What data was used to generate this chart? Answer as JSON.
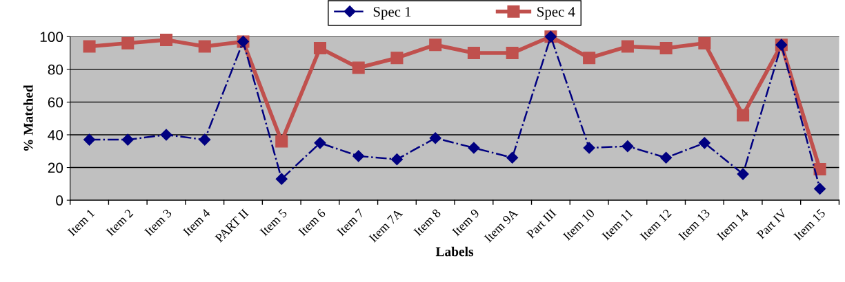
{
  "chart_data": {
    "type": "line",
    "xlabel": "Labels",
    "ylabel": "% Matched",
    "categories": [
      "Item 1",
      "Item 2",
      "Item 3",
      "Item 4",
      "PART II",
      "Item 5",
      "Item 6",
      "Item 7",
      "Item 7A",
      "Item 8",
      "Item 9",
      "Item 9A",
      "Part III",
      "Item 10",
      "Item 11",
      "Item 12",
      "Item 13",
      "Item 14",
      "Part IV",
      "Item 15"
    ],
    "series": [
      {
        "name": "Spec 1",
        "color": "#000080",
        "marker": "diamond",
        "line_style": "dashdot",
        "values": [
          37,
          37,
          40,
          37,
          97,
          13,
          35,
          27,
          25,
          38,
          32,
          26,
          100,
          32,
          33,
          26,
          35,
          16,
          95,
          7
        ]
      },
      {
        "name": "Spec 4",
        "color": "#c0504d",
        "marker": "square",
        "line_style": "solid",
        "values": [
          94,
          96,
          98,
          94,
          97,
          36,
          93,
          81,
          87,
          95,
          90,
          90,
          100,
          87,
          94,
          93,
          96,
          52,
          95,
          19
        ]
      }
    ],
    "ylim": [
      0,
      100
    ],
    "yticks": [
      0,
      20,
      40,
      60,
      80,
      100
    ],
    "grid": "y",
    "legend": "top"
  }
}
